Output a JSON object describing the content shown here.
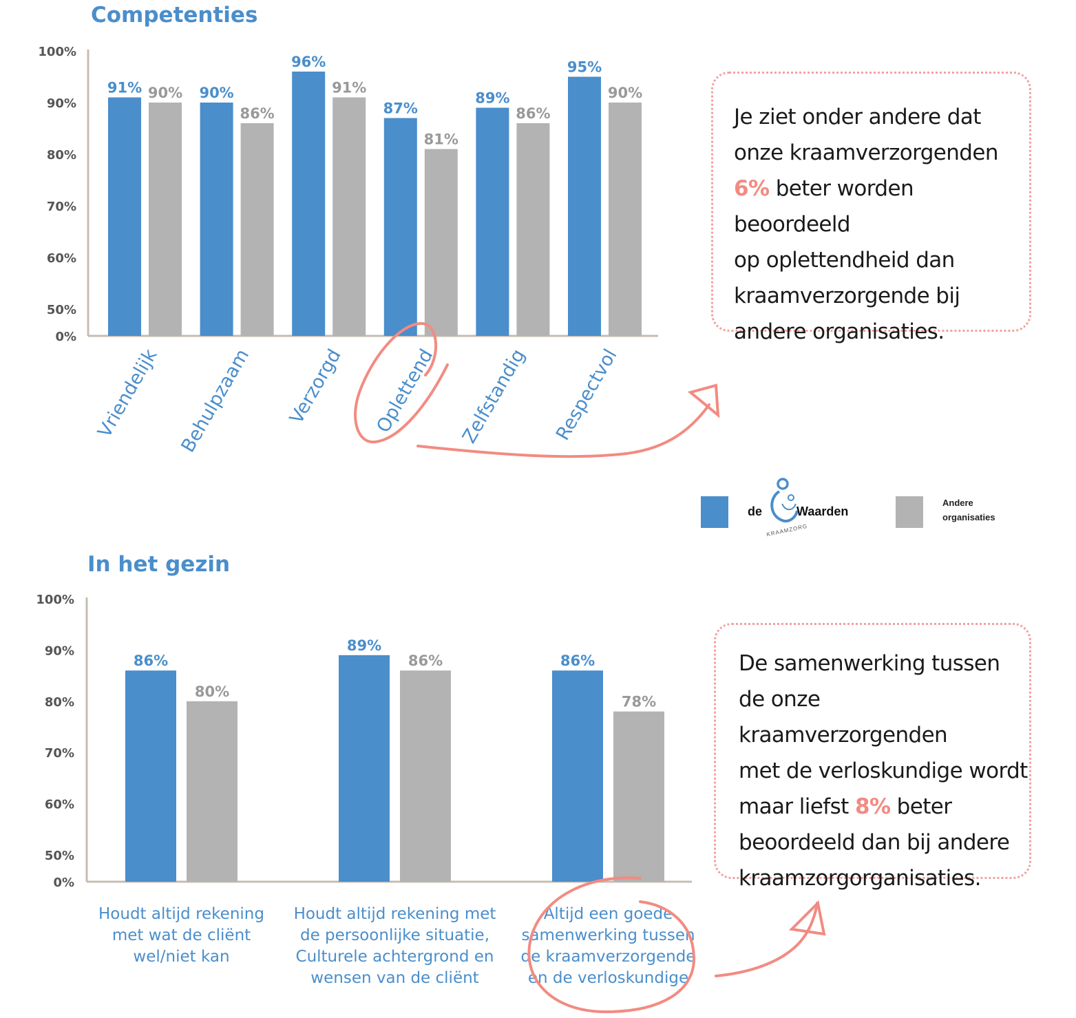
{
  "chart_data": [
    {
      "type": "bar",
      "title": "Competenties",
      "categories": [
        "Vriendelijk",
        "Behulpzaam",
        "Verzorgd",
        "Oplettend",
        "Zelfstandig",
        "Respectvol"
      ],
      "series": [
        {
          "name": "de Waarden",
          "values": [
            91,
            90,
            96,
            87,
            89,
            95
          ],
          "labels": [
            "91%",
            "90%",
            "96%",
            "87%",
            "89%",
            "95%"
          ]
        },
        {
          "name": "Andere organisaties",
          "values": [
            90,
            86,
            91,
            81,
            86,
            90
          ],
          "labels": [
            "90%",
            "86%",
            "91%",
            "81%",
            "86%",
            "90%"
          ]
        }
      ],
      "y_ticks": [
        {
          "label": "100%",
          "value": 100
        },
        {
          "label": "90%",
          "value": 90
        },
        {
          "label": "80%",
          "value": 80
        },
        {
          "label": "70%",
          "value": 70
        },
        {
          "label": "60%",
          "value": 60
        },
        {
          "label": "50%",
          "value": 50
        },
        {
          "label": "0%",
          "value": 0
        }
      ],
      "ylim": [
        0,
        100
      ],
      "axis_break": "0%–50% compressed",
      "grid": false,
      "highlighted_category": "Oplettend",
      "legend_position": "bottom-right"
    },
    {
      "type": "bar",
      "title": "In het gezin",
      "categories": [
        "Houdt altijd rekening met wat de cliënt wel/niet kan",
        "Houdt altijd rekening met de persoonlijke situatie, Culturele achtergrond en wensen van de cliënt",
        "Altijd een goede samenwerking tussen de kraamverzorgende en de verloskundige"
      ],
      "category_lines": [
        [
          "Houdt altijd rekening",
          "met wat de cliënt",
          "wel/niet kan"
        ],
        [
          "Houdt altijd rekening met",
          "de persoonlijke situatie,",
          "Culturele achtergrond en",
          "wensen van de cliënt"
        ],
        [
          "Altijd een goede",
          "samenwerking tussen",
          "de kraamverzorgende",
          "en de verloskundige"
        ]
      ],
      "series": [
        {
          "name": "de Waarden",
          "values": [
            86,
            89,
            86
          ],
          "labels": [
            "86%",
            "89%",
            "86%"
          ]
        },
        {
          "name": "Andere organisaties",
          "values": [
            80,
            86,
            78
          ],
          "labels": [
            "80%",
            "86%",
            "78%"
          ]
        }
      ],
      "y_ticks": [
        {
          "label": "100%",
          "value": 100
        },
        {
          "label": "90%",
          "value": 90
        },
        {
          "label": "80%",
          "value": 80
        },
        {
          "label": "70%",
          "value": 70
        },
        {
          "label": "60%",
          "value": 60
        },
        {
          "label": "50%",
          "value": 50
        },
        {
          "label": "0%",
          "value": 0
        }
      ],
      "ylim": [
        0,
        100
      ],
      "axis_break": "0%–50% compressed",
      "grid": false,
      "highlighted_category": "Altijd een goede samenwerking tussen de kraamverzorgende en de verloskundige"
    }
  ],
  "colors": {
    "series_primary": "#4a8ecb",
    "series_secondary": "#b3b3b3",
    "axis": "#c4bdb2",
    "highlight": "#f28b82",
    "title": "#4a8ecb"
  },
  "legend": {
    "primary_label_parts": [
      "de",
      "Waarden"
    ],
    "primary_logo_subtext": "KRAAMZORG",
    "primary_logo_icon": "mother-and-baby-logo-icon",
    "secondary_label_lines": [
      "Andere",
      "organisaties"
    ]
  },
  "callouts": {
    "top": {
      "lines": [
        [
          {
            "t": "Je ziet onder andere dat"
          }
        ],
        [
          {
            "t": "onze kraamverzorgenden"
          }
        ],
        [
          {
            "t": "6%",
            "hl": true
          },
          {
            "t": " beter worden beoordeeld"
          }
        ],
        [
          {
            "t": "op oplettendheid dan"
          }
        ],
        [
          {
            "t": "kraamverzorgende bij"
          }
        ],
        [
          {
            "t": "andere organisaties."
          }
        ]
      ]
    },
    "bottom": {
      "lines": [
        [
          {
            "t": "De samenwerking tussen"
          }
        ],
        [
          {
            "t": "de onze kraamverzorgenden"
          }
        ],
        [
          {
            "t": "met de verloskundige wordt"
          }
        ],
        [
          {
            "t": "maar liefst "
          },
          {
            "t": "8%",
            "hl": true
          },
          {
            "t": " beter"
          }
        ],
        [
          {
            "t": "beoordeeld dan bij andere"
          }
        ],
        [
          {
            "t": "kraamzorgorganisaties."
          }
        ]
      ]
    }
  }
}
